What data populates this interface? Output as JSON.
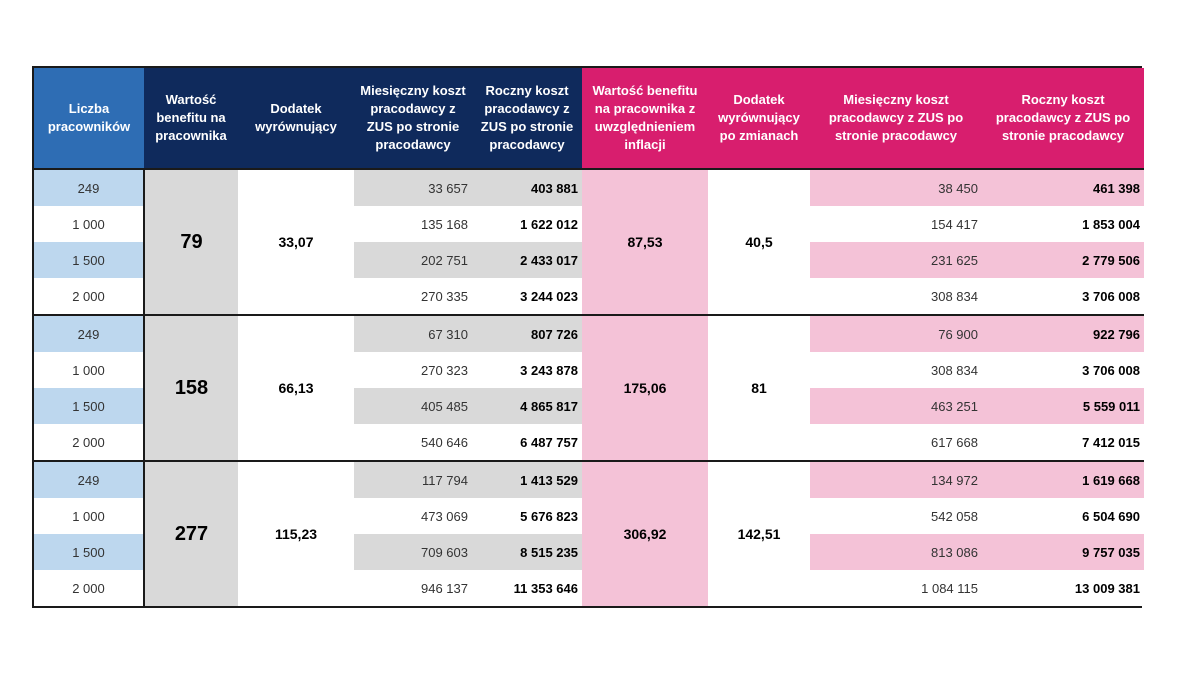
{
  "headers": [
    "Liczba pracowników",
    "Wartość benefitu na pracownika",
    "Dodatek wyrównujący",
    "Miesięczny koszt pracodawcy z ZUS po stronie pracodawcy",
    "Roczny koszt pracodawcy z ZUS po stronie pracodawcy",
    "Wartość benefitu na pracownika z uwzględnieniem inflacji",
    "Dodatek wyrównujący po zmianach",
    "Miesięczny koszt pracodawcy z ZUS po stronie pracodawcy",
    "Roczny koszt pracodawcy z ZUS po stronie pracodawcy"
  ],
  "groups": [
    {
      "benefit": "79",
      "dodatek": "33,07",
      "benefit_inflacja": "87,53",
      "dodatek_po_zmianach": "40,5",
      "rows": [
        {
          "liczba": "249",
          "mies": "33 657",
          "roczny": "403 881",
          "mies2": "38 450",
          "roczny2": "461 398"
        },
        {
          "liczba": "1 000",
          "mies": "135 168",
          "roczny": "1 622 012",
          "mies2": "154 417",
          "roczny2": "1 853 004"
        },
        {
          "liczba": "1 500",
          "mies": "202 751",
          "roczny": "2 433 017",
          "mies2": "231 625",
          "roczny2": "2 779 506"
        },
        {
          "liczba": "2 000",
          "mies": "270 335",
          "roczny": "3 244 023",
          "mies2": "308 834",
          "roczny2": "3 706 008"
        }
      ]
    },
    {
      "benefit": "158",
      "dodatek": "66,13",
      "benefit_inflacja": "175,06",
      "dodatek_po_zmianach": "81",
      "rows": [
        {
          "liczba": "249",
          "mies": "67 310",
          "roczny": "807 726",
          "mies2": "76 900",
          "roczny2": "922 796"
        },
        {
          "liczba": "1 000",
          "mies": "270 323",
          "roczny": "3 243 878",
          "mies2": "308 834",
          "roczny2": "3 706 008"
        },
        {
          "liczba": "1 500",
          "mies": "405 485",
          "roczny": "4 865 817",
          "mies2": "463 251",
          "roczny2": "5 559 011"
        },
        {
          "liczba": "2 000",
          "mies": "540 646",
          "roczny": "6 487 757",
          "mies2": "617 668",
          "roczny2": "7 412 015"
        }
      ]
    },
    {
      "benefit": "277",
      "dodatek": "115,23",
      "benefit_inflacja": "306,92",
      "dodatek_po_zmianach": "142,51",
      "rows": [
        {
          "liczba": "249",
          "mies": "117 794",
          "roczny": "1 413 529",
          "mies2": "134 972",
          "roczny2": "1 619 668"
        },
        {
          "liczba": "1 000",
          "mies": "473 069",
          "roczny": "5 676 823",
          "mies2": "542 058",
          "roczny2": "6 504 690"
        },
        {
          "liczba": "1 500",
          "mies": "709 603",
          "roczny": "8 515 235",
          "mies2": "813 086",
          "roczny2": "9 757 035"
        },
        {
          "liczba": "2 000",
          "mies": "946 137",
          "roczny": "11 353 646",
          "mies2": "1 084 115",
          "roczny2": "13 009 381"
        }
      ]
    }
  ],
  "colors": {
    "header_blue_light": "#2e6db4",
    "header_navy": "#0f2a5c",
    "header_pink": "#d81e6e",
    "row_light_blue": "#bdd7ee",
    "grey": "#d9d9d9",
    "light_pink": "#f4c2d7"
  }
}
